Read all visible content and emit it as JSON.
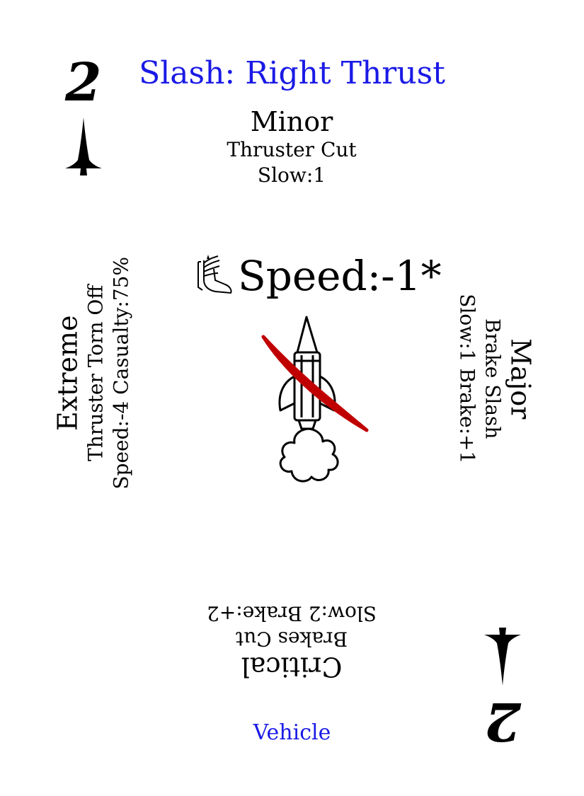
{
  "card": {
    "rank": "2",
    "title": "Slash: Right Thrust",
    "speed_modifier": "Speed:-1*",
    "category": "Vehicle",
    "accent_color": "#1a1ae6",
    "slash_color": "#c00000",
    "suit_icon": "spade-pip-icon",
    "speed_icon": "winged-boot-icon",
    "art_icon": "rocket-icon"
  },
  "results": {
    "minor": {
      "severity": "Minor",
      "effect": "Thruster Cut",
      "stats": "Slow:1"
    },
    "major": {
      "severity": "Major",
      "effect": "Brake Slash",
      "stats": "Slow:1 Brake:+1"
    },
    "critical": {
      "severity": "Critical",
      "effect": "Brakes Cut",
      "stats": "Slow:2 Brake:+2"
    },
    "extreme": {
      "severity": "Extreme",
      "effect": "Thruster Torn Off",
      "stats": "Speed:-4 Casualty:75%"
    }
  }
}
